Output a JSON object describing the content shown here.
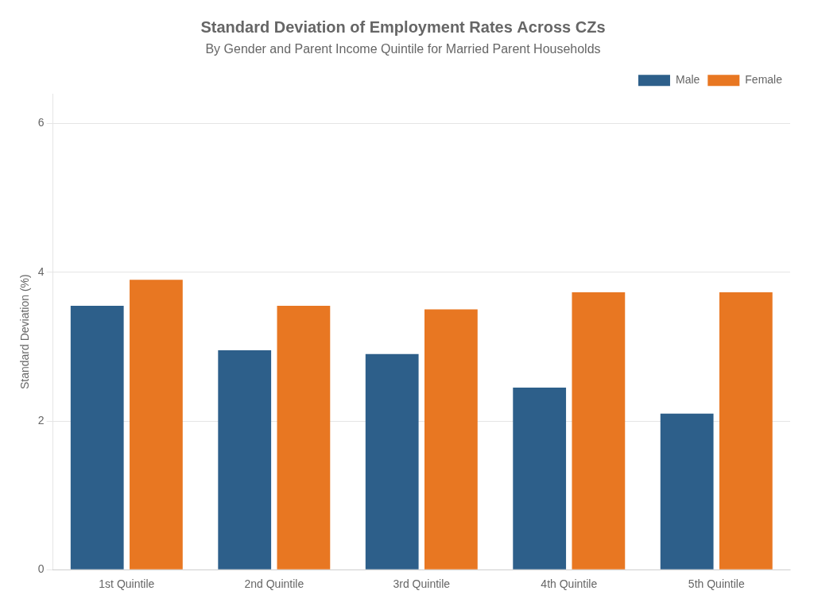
{
  "chart_data": {
    "type": "bar",
    "title": "Standard Deviation of Employment Rates Across CZs",
    "subtitle": "By Gender and Parent Income Quintile for Married Parent Households",
    "ylabel": "Standard Deviation (%)",
    "categories": [
      "1st Quintile",
      "2nd Quintile",
      "3rd Quintile",
      "4th Quintile",
      "5th Quintile"
    ],
    "series": [
      {
        "name": "Male",
        "color": "#2D5F8A",
        "values": [
          3.55,
          2.95,
          2.9,
          2.45,
          2.1
        ]
      },
      {
        "name": "Female",
        "color": "#E87722",
        "values": [
          3.9,
          3.55,
          3.5,
          3.73,
          3.73
        ]
      }
    ],
    "ylim": [
      0,
      6.4
    ],
    "yticks": [
      0,
      2,
      4,
      6
    ],
    "grid": true,
    "legend": "upper right"
  }
}
